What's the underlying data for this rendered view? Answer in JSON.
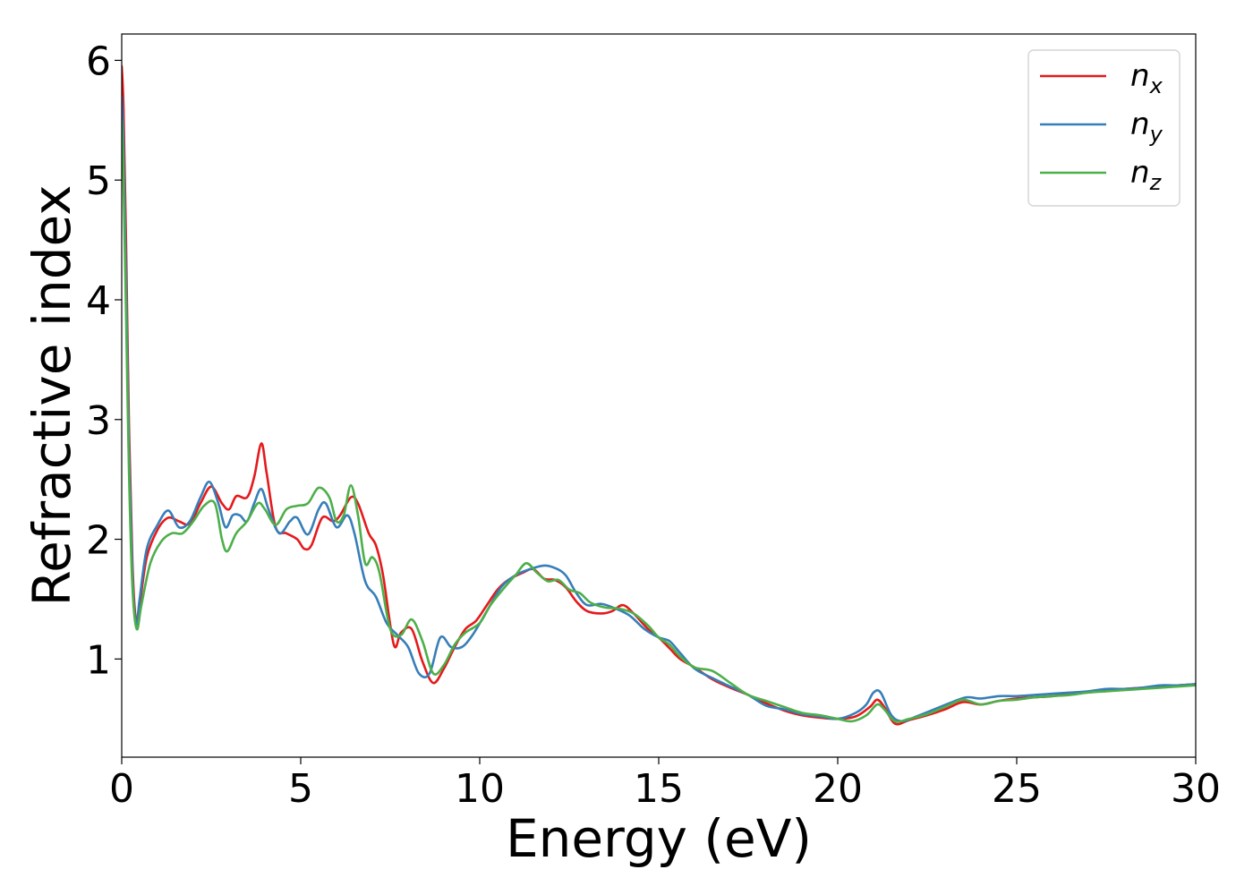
{
  "chart_data": {
    "type": "line",
    "xlabel": "Energy (eV)",
    "ylabel": "Refractive index",
    "xlim": [
      0,
      30
    ],
    "ylim": [
      0.18,
      6.22
    ],
    "xticks": [
      "0",
      "5",
      "10",
      "15",
      "20",
      "25",
      "30"
    ],
    "yticks": [
      "1",
      "2",
      "3",
      "4",
      "5",
      "6"
    ],
    "grid": false,
    "legend_position": "top-right",
    "series": [
      {
        "name": "n",
        "subscript": "x",
        "color": "#e41a1c",
        "points": [
          [
            0,
            5.95
          ],
          [
            0.05,
            5.6
          ],
          [
            0.12,
            4.5
          ],
          [
            0.2,
            3.0
          ],
          [
            0.3,
            1.8
          ],
          [
            0.4,
            1.32
          ],
          [
            0.5,
            1.45
          ],
          [
            0.7,
            1.85
          ],
          [
            1.0,
            2.08
          ],
          [
            1.3,
            2.18
          ],
          [
            1.6,
            2.15
          ],
          [
            1.9,
            2.13
          ],
          [
            2.2,
            2.3
          ],
          [
            2.5,
            2.44
          ],
          [
            2.8,
            2.3
          ],
          [
            3.0,
            2.25
          ],
          [
            3.2,
            2.36
          ],
          [
            3.5,
            2.35
          ],
          [
            3.7,
            2.52
          ],
          [
            3.9,
            2.8
          ],
          [
            4.05,
            2.55
          ],
          [
            4.3,
            2.1
          ],
          [
            4.6,
            2.05
          ],
          [
            4.9,
            2.0
          ],
          [
            5.1,
            1.92
          ],
          [
            5.3,
            1.95
          ],
          [
            5.6,
            2.18
          ],
          [
            5.9,
            2.15
          ],
          [
            6.1,
            2.2
          ],
          [
            6.4,
            2.35
          ],
          [
            6.6,
            2.3
          ],
          [
            6.9,
            2.05
          ],
          [
            7.1,
            1.95
          ],
          [
            7.3,
            1.7
          ],
          [
            7.6,
            1.12
          ],
          [
            7.8,
            1.22
          ],
          [
            8.1,
            1.25
          ],
          [
            8.4,
            0.98
          ],
          [
            8.7,
            0.8
          ],
          [
            9.0,
            0.92
          ],
          [
            9.3,
            1.1
          ],
          [
            9.6,
            1.25
          ],
          [
            9.9,
            1.32
          ],
          [
            10.2,
            1.45
          ],
          [
            10.5,
            1.58
          ],
          [
            10.8,
            1.66
          ],
          [
            11.2,
            1.72
          ],
          [
            11.5,
            1.75
          ],
          [
            11.8,
            1.67
          ],
          [
            12.1,
            1.66
          ],
          [
            12.4,
            1.6
          ],
          [
            12.7,
            1.48
          ],
          [
            13.0,
            1.4
          ],
          [
            13.4,
            1.38
          ],
          [
            13.7,
            1.4
          ],
          [
            14.0,
            1.45
          ],
          [
            14.3,
            1.38
          ],
          [
            14.7,
            1.25
          ],
          [
            15.0,
            1.18
          ],
          [
            15.3,
            1.09
          ],
          [
            15.6,
            1.0
          ],
          [
            16.0,
            0.93
          ],
          [
            16.5,
            0.83
          ],
          [
            17.0,
            0.76
          ],
          [
            17.5,
            0.7
          ],
          [
            18.0,
            0.63
          ],
          [
            18.5,
            0.57
          ],
          [
            19.0,
            0.53
          ],
          [
            19.5,
            0.51
          ],
          [
            20.0,
            0.5
          ],
          [
            20.5,
            0.52
          ],
          [
            20.9,
            0.6
          ],
          [
            21.1,
            0.66
          ],
          [
            21.3,
            0.6
          ],
          [
            21.6,
            0.46
          ],
          [
            22.0,
            0.49
          ],
          [
            22.5,
            0.53
          ],
          [
            23.0,
            0.58
          ],
          [
            23.5,
            0.64
          ],
          [
            24.0,
            0.62
          ],
          [
            24.5,
            0.65
          ],
          [
            25.0,
            0.67
          ],
          [
            25.5,
            0.68
          ],
          [
            26.0,
            0.69
          ],
          [
            26.5,
            0.71
          ],
          [
            27.0,
            0.72
          ],
          [
            27.5,
            0.74
          ],
          [
            28.0,
            0.75
          ],
          [
            28.5,
            0.76
          ],
          [
            29.0,
            0.77
          ],
          [
            29.5,
            0.78
          ],
          [
            30.0,
            0.79
          ]
        ]
      },
      {
        "name": "n",
        "subscript": "y",
        "color": "#377eb8",
        "points": [
          [
            0,
            5.7
          ],
          [
            0.05,
            5.3
          ],
          [
            0.12,
            4.2
          ],
          [
            0.2,
            2.8
          ],
          [
            0.3,
            1.7
          ],
          [
            0.4,
            1.28
          ],
          [
            0.5,
            1.5
          ],
          [
            0.7,
            1.92
          ],
          [
            1.0,
            2.12
          ],
          [
            1.3,
            2.24
          ],
          [
            1.6,
            2.1
          ],
          [
            1.9,
            2.15
          ],
          [
            2.2,
            2.35
          ],
          [
            2.45,
            2.48
          ],
          [
            2.7,
            2.3
          ],
          [
            2.9,
            2.1
          ],
          [
            3.1,
            2.2
          ],
          [
            3.3,
            2.2
          ],
          [
            3.5,
            2.15
          ],
          [
            3.7,
            2.3
          ],
          [
            3.9,
            2.42
          ],
          [
            4.1,
            2.25
          ],
          [
            4.4,
            2.05
          ],
          [
            4.7,
            2.15
          ],
          [
            4.9,
            2.18
          ],
          [
            5.2,
            2.04
          ],
          [
            5.5,
            2.25
          ],
          [
            5.7,
            2.3
          ],
          [
            6.0,
            2.1
          ],
          [
            6.3,
            2.2
          ],
          [
            6.5,
            2.05
          ],
          [
            6.8,
            1.65
          ],
          [
            7.1,
            1.52
          ],
          [
            7.4,
            1.3
          ],
          [
            7.7,
            1.2
          ],
          [
            8.0,
            1.1
          ],
          [
            8.3,
            0.88
          ],
          [
            8.6,
            0.88
          ],
          [
            8.9,
            1.18
          ],
          [
            9.2,
            1.1
          ],
          [
            9.5,
            1.1
          ],
          [
            9.8,
            1.2
          ],
          [
            10.2,
            1.4
          ],
          [
            10.6,
            1.6
          ],
          [
            11.0,
            1.7
          ],
          [
            11.4,
            1.75
          ],
          [
            11.8,
            1.78
          ],
          [
            12.1,
            1.76
          ],
          [
            12.4,
            1.7
          ],
          [
            12.7,
            1.55
          ],
          [
            13.0,
            1.45
          ],
          [
            13.4,
            1.46
          ],
          [
            13.8,
            1.42
          ],
          [
            14.2,
            1.36
          ],
          [
            14.6,
            1.25
          ],
          [
            15.0,
            1.18
          ],
          [
            15.3,
            1.15
          ],
          [
            15.6,
            1.05
          ],
          [
            16.0,
            0.92
          ],
          [
            16.5,
            0.84
          ],
          [
            17.0,
            0.77
          ],
          [
            17.5,
            0.7
          ],
          [
            18.0,
            0.61
          ],
          [
            18.5,
            0.58
          ],
          [
            19.0,
            0.54
          ],
          [
            19.5,
            0.52
          ],
          [
            20.0,
            0.5
          ],
          [
            20.5,
            0.55
          ],
          [
            20.8,
            0.62
          ],
          [
            21.0,
            0.72
          ],
          [
            21.2,
            0.72
          ],
          [
            21.5,
            0.53
          ],
          [
            21.8,
            0.48
          ],
          [
            22.2,
            0.52
          ],
          [
            22.7,
            0.58
          ],
          [
            23.2,
            0.64
          ],
          [
            23.6,
            0.68
          ],
          [
            24.0,
            0.67
          ],
          [
            24.5,
            0.69
          ],
          [
            25.0,
            0.69
          ],
          [
            25.5,
            0.7
          ],
          [
            26.0,
            0.71
          ],
          [
            26.5,
            0.72
          ],
          [
            27.0,
            0.73
          ],
          [
            27.5,
            0.75
          ],
          [
            28.0,
            0.75
          ],
          [
            28.5,
            0.76
          ],
          [
            29.0,
            0.78
          ],
          [
            29.5,
            0.78
          ],
          [
            30.0,
            0.79
          ]
        ]
      },
      {
        "name": "n",
        "subscript": "z",
        "color": "#4daf4a",
        "points": [
          [
            0,
            5.5
          ],
          [
            0.05,
            5.0
          ],
          [
            0.12,
            3.9
          ],
          [
            0.2,
            2.6
          ],
          [
            0.3,
            1.6
          ],
          [
            0.42,
            1.25
          ],
          [
            0.55,
            1.45
          ],
          [
            0.8,
            1.8
          ],
          [
            1.1,
            1.98
          ],
          [
            1.4,
            2.05
          ],
          [
            1.7,
            2.05
          ],
          [
            2.0,
            2.15
          ],
          [
            2.3,
            2.28
          ],
          [
            2.6,
            2.3
          ],
          [
            2.8,
            2.0
          ],
          [
            2.95,
            1.9
          ],
          [
            3.2,
            2.05
          ],
          [
            3.5,
            2.15
          ],
          [
            3.8,
            2.3
          ],
          [
            4.0,
            2.25
          ],
          [
            4.3,
            2.12
          ],
          [
            4.6,
            2.25
          ],
          [
            4.9,
            2.28
          ],
          [
            5.2,
            2.3
          ],
          [
            5.5,
            2.43
          ],
          [
            5.8,
            2.35
          ],
          [
            6.0,
            2.15
          ],
          [
            6.2,
            2.2
          ],
          [
            6.4,
            2.45
          ],
          [
            6.6,
            2.2
          ],
          [
            6.8,
            1.8
          ],
          [
            7.0,
            1.85
          ],
          [
            7.2,
            1.72
          ],
          [
            7.5,
            1.25
          ],
          [
            7.8,
            1.2
          ],
          [
            8.1,
            1.33
          ],
          [
            8.4,
            1.15
          ],
          [
            8.7,
            0.88
          ],
          [
            9.0,
            0.95
          ],
          [
            9.3,
            1.12
          ],
          [
            9.6,
            1.22
          ],
          [
            10.0,
            1.3
          ],
          [
            10.3,
            1.45
          ],
          [
            10.7,
            1.6
          ],
          [
            11.0,
            1.7
          ],
          [
            11.3,
            1.8
          ],
          [
            11.6,
            1.72
          ],
          [
            11.9,
            1.65
          ],
          [
            12.2,
            1.66
          ],
          [
            12.5,
            1.58
          ],
          [
            12.8,
            1.55
          ],
          [
            13.1,
            1.47
          ],
          [
            13.5,
            1.43
          ],
          [
            13.9,
            1.42
          ],
          [
            14.3,
            1.38
          ],
          [
            14.7,
            1.28
          ],
          [
            15.0,
            1.18
          ],
          [
            15.3,
            1.12
          ],
          [
            15.6,
            1.02
          ],
          [
            16.0,
            0.93
          ],
          [
            16.5,
            0.9
          ],
          [
            17.0,
            0.8
          ],
          [
            17.5,
            0.7
          ],
          [
            18.0,
            0.65
          ],
          [
            18.5,
            0.6
          ],
          [
            19.0,
            0.55
          ],
          [
            19.5,
            0.53
          ],
          [
            20.0,
            0.5
          ],
          [
            20.4,
            0.48
          ],
          [
            20.8,
            0.53
          ],
          [
            21.1,
            0.62
          ],
          [
            21.3,
            0.58
          ],
          [
            21.6,
            0.48
          ],
          [
            22.0,
            0.5
          ],
          [
            22.5,
            0.54
          ],
          [
            23.0,
            0.6
          ],
          [
            23.5,
            0.66
          ],
          [
            24.0,
            0.62
          ],
          [
            24.5,
            0.65
          ],
          [
            25.0,
            0.66
          ],
          [
            25.5,
            0.68
          ],
          [
            26.0,
            0.69
          ],
          [
            26.5,
            0.7
          ],
          [
            27.0,
            0.72
          ],
          [
            27.5,
            0.73
          ],
          [
            28.0,
            0.74
          ],
          [
            28.5,
            0.75
          ],
          [
            29.0,
            0.76
          ],
          [
            29.5,
            0.77
          ],
          [
            30.0,
            0.78
          ]
        ]
      }
    ]
  }
}
